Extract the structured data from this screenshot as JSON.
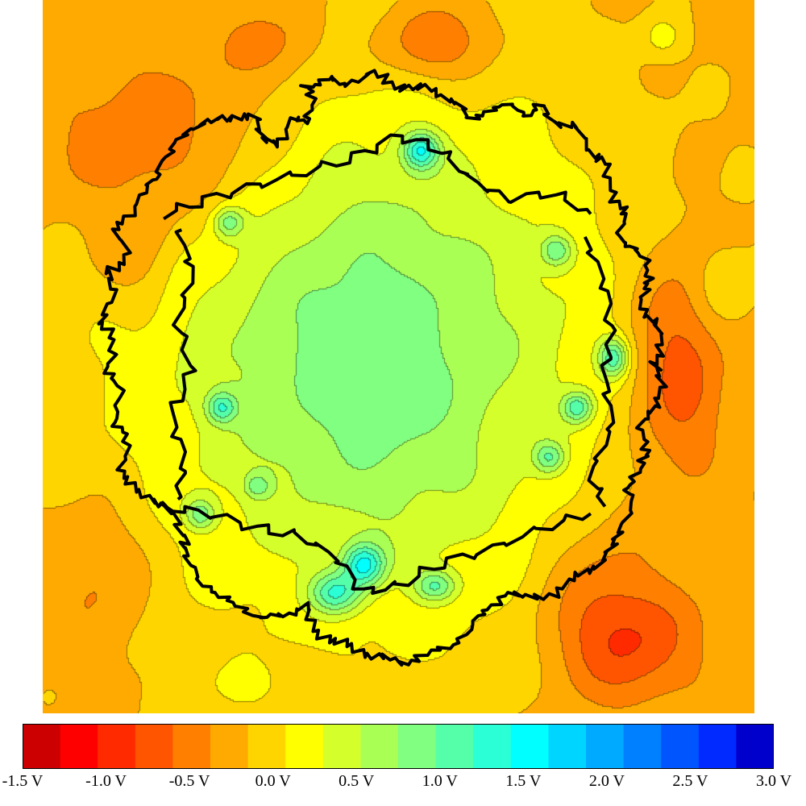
{
  "chart_data": {
    "type": "heatmap",
    "title": "",
    "xlabel": "",
    "ylabel": "",
    "colorbar": {
      "min": -1.5,
      "max": 3.0,
      "step": 0.25,
      "unit": "V",
      "colors": [
        "#cc0000",
        "#ff0000",
        "#ff2a00",
        "#ff5500",
        "#ff8000",
        "#ffaa00",
        "#ffd500",
        "#ffff00",
        "#d5ff2a",
        "#aaff55",
        "#80ff80",
        "#55ffaa",
        "#2affd5",
        "#00ffff",
        "#00d5ff",
        "#00aaff",
        "#0080ff",
        "#0055ff",
        "#002aff",
        "#0000cc"
      ],
      "tick_labels": [
        {
          "value": -1.5,
          "label": "-1.5 V"
        },
        {
          "value": -1.0,
          "label": "-1.0 V"
        },
        {
          "value": -0.5,
          "label": "-0.5 V"
        },
        {
          "value": 0.0,
          "label": "0.0 V"
        },
        {
          "value": 0.5,
          "label": "0.5 V"
        },
        {
          "value": 1.0,
          "label": "1.0 V"
        },
        {
          "value": 1.5,
          "label": "1.5 V"
        },
        {
          "value": 2.0,
          "label": "2.0 V"
        },
        {
          "value": 2.5,
          "label": "2.5 V"
        },
        {
          "value": 3.0,
          "label": "3.0 V"
        }
      ]
    },
    "field": {
      "x_range": [
        0,
        1
      ],
      "y_range": [
        0,
        1
      ],
      "background_value": -0.1,
      "features": [
        {
          "cx": 0.46,
          "cy": 0.5,
          "sx": 0.26,
          "sy": 0.28,
          "amp": 1.05
        },
        {
          "cx": 0.46,
          "cy": 0.5,
          "sx": 0.1,
          "sy": 0.15,
          "amp": 0.25
        },
        {
          "cx": 0.17,
          "cy": 0.2,
          "sx": 0.12,
          "sy": 0.1,
          "amp": -0.55
        },
        {
          "cx": 0.55,
          "cy": 0.06,
          "sx": 0.06,
          "sy": 0.04,
          "amp": -0.6
        },
        {
          "cx": 0.32,
          "cy": 0.06,
          "sx": 0.05,
          "sy": 0.04,
          "amp": -0.4
        },
        {
          "cx": 0.89,
          "cy": 0.52,
          "sx": 0.05,
          "sy": 0.12,
          "amp": -0.75
        },
        {
          "cx": 0.82,
          "cy": 0.9,
          "sx": 0.07,
          "sy": 0.06,
          "amp": -0.7
        },
        {
          "cx": 0.78,
          "cy": 0.8,
          "sx": 0.06,
          "sy": 0.08,
          "amp": -0.35
        },
        {
          "cx": 0.08,
          "cy": 0.8,
          "sx": 0.05,
          "sy": 0.08,
          "amp": -0.35
        },
        {
          "cx": 0.13,
          "cy": 0.36,
          "sx": 0.04,
          "sy": 0.06,
          "amp": -0.3
        },
        {
          "cx": 0.53,
          "cy": 0.21,
          "sx": 0.018,
          "sy": 0.018,
          "amp": 1.3
        },
        {
          "cx": 0.45,
          "cy": 0.79,
          "sx": 0.02,
          "sy": 0.02,
          "amp": 1.3
        },
        {
          "cx": 0.41,
          "cy": 0.83,
          "sx": 0.025,
          "sy": 0.02,
          "amp": 1.1
        },
        {
          "cx": 0.55,
          "cy": 0.82,
          "sx": 0.02,
          "sy": 0.015,
          "amp": 0.9
        },
        {
          "cx": 0.8,
          "cy": 0.5,
          "sx": 0.015,
          "sy": 0.02,
          "amp": 1.2
        },
        {
          "cx": 0.75,
          "cy": 0.57,
          "sx": 0.015,
          "sy": 0.015,
          "amp": 1.0
        },
        {
          "cx": 0.71,
          "cy": 0.64,
          "sx": 0.015,
          "sy": 0.015,
          "amp": 0.8
        },
        {
          "cx": 0.72,
          "cy": 0.35,
          "sx": 0.015,
          "sy": 0.015,
          "amp": 0.8
        },
        {
          "cx": 0.25,
          "cy": 0.57,
          "sx": 0.015,
          "sy": 0.015,
          "amp": 0.9
        },
        {
          "cx": 0.26,
          "cy": 0.31,
          "sx": 0.015,
          "sy": 0.015,
          "amp": 0.8
        },
        {
          "cx": 0.22,
          "cy": 0.72,
          "sx": 0.015,
          "sy": 0.015,
          "amp": 0.8
        },
        {
          "cx": 0.3,
          "cy": 0.68,
          "sx": 0.012,
          "sy": 0.012,
          "amp": 0.6
        },
        {
          "cx": 0.87,
          "cy": 0.05,
          "sx": 0.02,
          "sy": 0.02,
          "amp": 0.4
        },
        {
          "cx": 0.95,
          "cy": 0.4,
          "sx": 0.03,
          "sy": 0.04,
          "amp": 0.3
        },
        {
          "cx": 0.28,
          "cy": 0.96,
          "sx": 0.03,
          "sy": 0.02,
          "amp": 0.3
        }
      ]
    },
    "boundary_contour": [
      [
        0.17,
        0.23
      ],
      [
        0.19,
        0.19
      ],
      [
        0.22,
        0.18
      ],
      [
        0.25,
        0.16
      ],
      [
        0.27,
        0.17
      ],
      [
        0.3,
        0.16
      ],
      [
        0.31,
        0.2
      ],
      [
        0.33,
        0.2
      ],
      [
        0.35,
        0.17
      ],
      [
        0.37,
        0.17
      ],
      [
        0.38,
        0.14
      ],
      [
        0.37,
        0.12
      ],
      [
        0.4,
        0.11
      ],
      [
        0.42,
        0.12
      ],
      [
        0.46,
        0.1
      ],
      [
        0.49,
        0.12
      ],
      [
        0.52,
        0.12
      ],
      [
        0.55,
        0.13
      ],
      [
        0.58,
        0.14
      ],
      [
        0.6,
        0.17
      ],
      [
        0.63,
        0.15
      ],
      [
        0.66,
        0.15
      ],
      [
        0.68,
        0.16
      ],
      [
        0.7,
        0.15
      ],
      [
        0.72,
        0.17
      ],
      [
        0.75,
        0.18
      ],
      [
        0.77,
        0.21
      ],
      [
        0.79,
        0.23
      ],
      [
        0.8,
        0.27
      ],
      [
        0.82,
        0.3
      ],
      [
        0.81,
        0.33
      ],
      [
        0.83,
        0.35
      ],
      [
        0.85,
        0.37
      ],
      [
        0.85,
        0.4
      ],
      [
        0.84,
        0.43
      ],
      [
        0.86,
        0.45
      ],
      [
        0.87,
        0.48
      ],
      [
        0.86,
        0.51
      ],
      [
        0.87,
        0.54
      ],
      [
        0.86,
        0.57
      ],
      [
        0.84,
        0.6
      ],
      [
        0.85,
        0.63
      ],
      [
        0.84,
        0.66
      ],
      [
        0.82,
        0.68
      ],
      [
        0.83,
        0.71
      ],
      [
        0.81,
        0.74
      ],
      [
        0.8,
        0.77
      ],
      [
        0.78,
        0.79
      ],
      [
        0.75,
        0.81
      ],
      [
        0.72,
        0.83
      ],
      [
        0.68,
        0.84
      ],
      [
        0.65,
        0.83
      ],
      [
        0.62,
        0.86
      ],
      [
        0.6,
        0.88
      ],
      [
        0.57,
        0.91
      ],
      [
        0.53,
        0.92
      ],
      [
        0.5,
        0.93
      ],
      [
        0.47,
        0.92
      ],
      [
        0.44,
        0.91
      ],
      [
        0.41,
        0.9
      ],
      [
        0.38,
        0.88
      ],
      [
        0.37,
        0.85
      ],
      [
        0.34,
        0.86
      ],
      [
        0.31,
        0.87
      ],
      [
        0.28,
        0.85
      ],
      [
        0.25,
        0.84
      ],
      [
        0.22,
        0.81
      ],
      [
        0.2,
        0.78
      ],
      [
        0.2,
        0.75
      ],
      [
        0.18,
        0.72
      ],
      [
        0.16,
        0.7
      ],
      [
        0.13,
        0.69
      ],
      [
        0.11,
        0.66
      ],
      [
        0.12,
        0.62
      ],
      [
        0.1,
        0.59
      ],
      [
        0.11,
        0.55
      ],
      [
        0.09,
        0.52
      ],
      [
        0.1,
        0.48
      ],
      [
        0.08,
        0.45
      ],
      [
        0.1,
        0.41
      ],
      [
        0.09,
        0.38
      ],
      [
        0.12,
        0.36
      ],
      [
        0.1,
        0.32
      ],
      [
        0.13,
        0.29
      ],
      [
        0.15,
        0.26
      ]
    ],
    "inner_contours": [
      [
        [
          0.17,
          0.3
        ],
        [
          0.23,
          0.28
        ],
        [
          0.3,
          0.26
        ],
        [
          0.37,
          0.24
        ],
        [
          0.44,
          0.22
        ],
        [
          0.5,
          0.19
        ],
        [
          0.56,
          0.21
        ],
        [
          0.6,
          0.25
        ],
        [
          0.65,
          0.28
        ],
        [
          0.72,
          0.27
        ],
        [
          0.77,
          0.3
        ]
      ],
      [
        [
          0.17,
          0.71
        ],
        [
          0.23,
          0.72
        ],
        [
          0.3,
          0.74
        ],
        [
          0.36,
          0.75
        ],
        [
          0.41,
          0.78
        ],
        [
          0.45,
          0.83
        ],
        [
          0.5,
          0.82
        ],
        [
          0.56,
          0.79
        ],
        [
          0.63,
          0.77
        ],
        [
          0.7,
          0.74
        ],
        [
          0.77,
          0.72
        ]
      ],
      [
        [
          0.19,
          0.32
        ],
        [
          0.21,
          0.38
        ],
        [
          0.19,
          0.45
        ],
        [
          0.21,
          0.52
        ],
        [
          0.18,
          0.58
        ],
        [
          0.2,
          0.65
        ],
        [
          0.19,
          0.7
        ]
      ],
      [
        [
          0.76,
          0.33
        ],
        [
          0.79,
          0.4
        ],
        [
          0.8,
          0.47
        ],
        [
          0.79,
          0.53
        ],
        [
          0.8,
          0.6
        ],
        [
          0.77,
          0.66
        ],
        [
          0.79,
          0.71
        ]
      ]
    ]
  }
}
